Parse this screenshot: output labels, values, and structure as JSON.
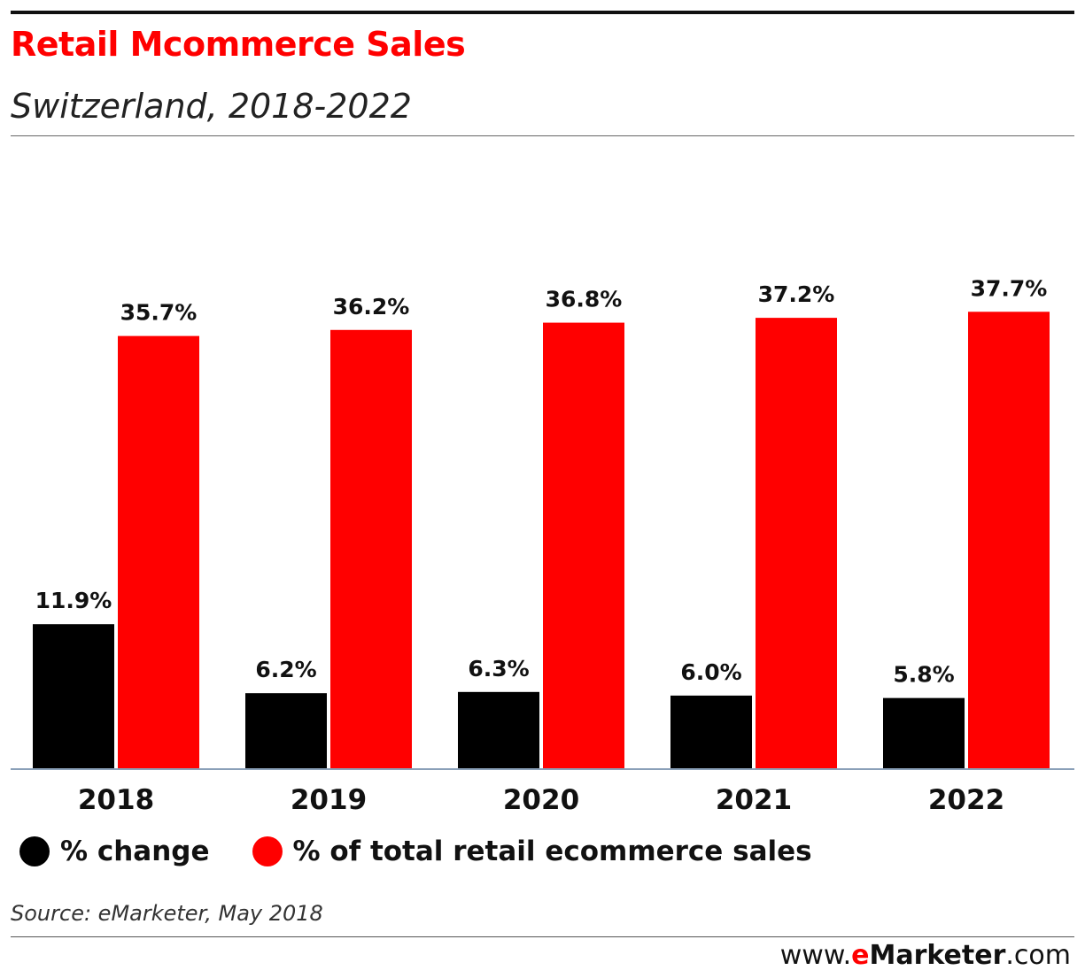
{
  "header": {
    "title": "Retail Mcommerce Sales",
    "subtitle": "Switzerland, 2018-2022"
  },
  "chart_data": {
    "type": "bar",
    "title": "Retail Mcommerce Sales",
    "subtitle": "Switzerland, 2018-2022",
    "categories": [
      "2018",
      "2019",
      "2020",
      "2021",
      "2022"
    ],
    "series": [
      {
        "name": "% change",
        "color": "#000000",
        "values": [
          11.9,
          6.2,
          6.3,
          6.0,
          5.8
        ],
        "labels": [
          "11.9%",
          "6.2%",
          "6.3%",
          "6.0%",
          "5.8%"
        ]
      },
      {
        "name": "% of total retail ecommerce sales",
        "color": "#ff0000",
        "values": [
          35.7,
          36.2,
          36.8,
          37.2,
          37.7
        ],
        "labels": [
          "35.7%",
          "36.2%",
          "36.8%",
          "37.2%",
          "37.7%"
        ]
      }
    ],
    "xlabel": "",
    "ylabel": "",
    "ylim": [
      0,
      40
    ],
    "grid": false,
    "legend_position": "bottom-left"
  },
  "legend": {
    "items": [
      {
        "label": "% change",
        "color": "#000000"
      },
      {
        "label": "% of total retail ecommerce sales",
        "color": "#ff0000"
      }
    ]
  },
  "footer": {
    "source": "Source: eMarketer, May 2018",
    "brand_prefix": "www.",
    "brand_e": "e",
    "brand_name": "Marketer",
    "brand_suffix": ".com"
  }
}
